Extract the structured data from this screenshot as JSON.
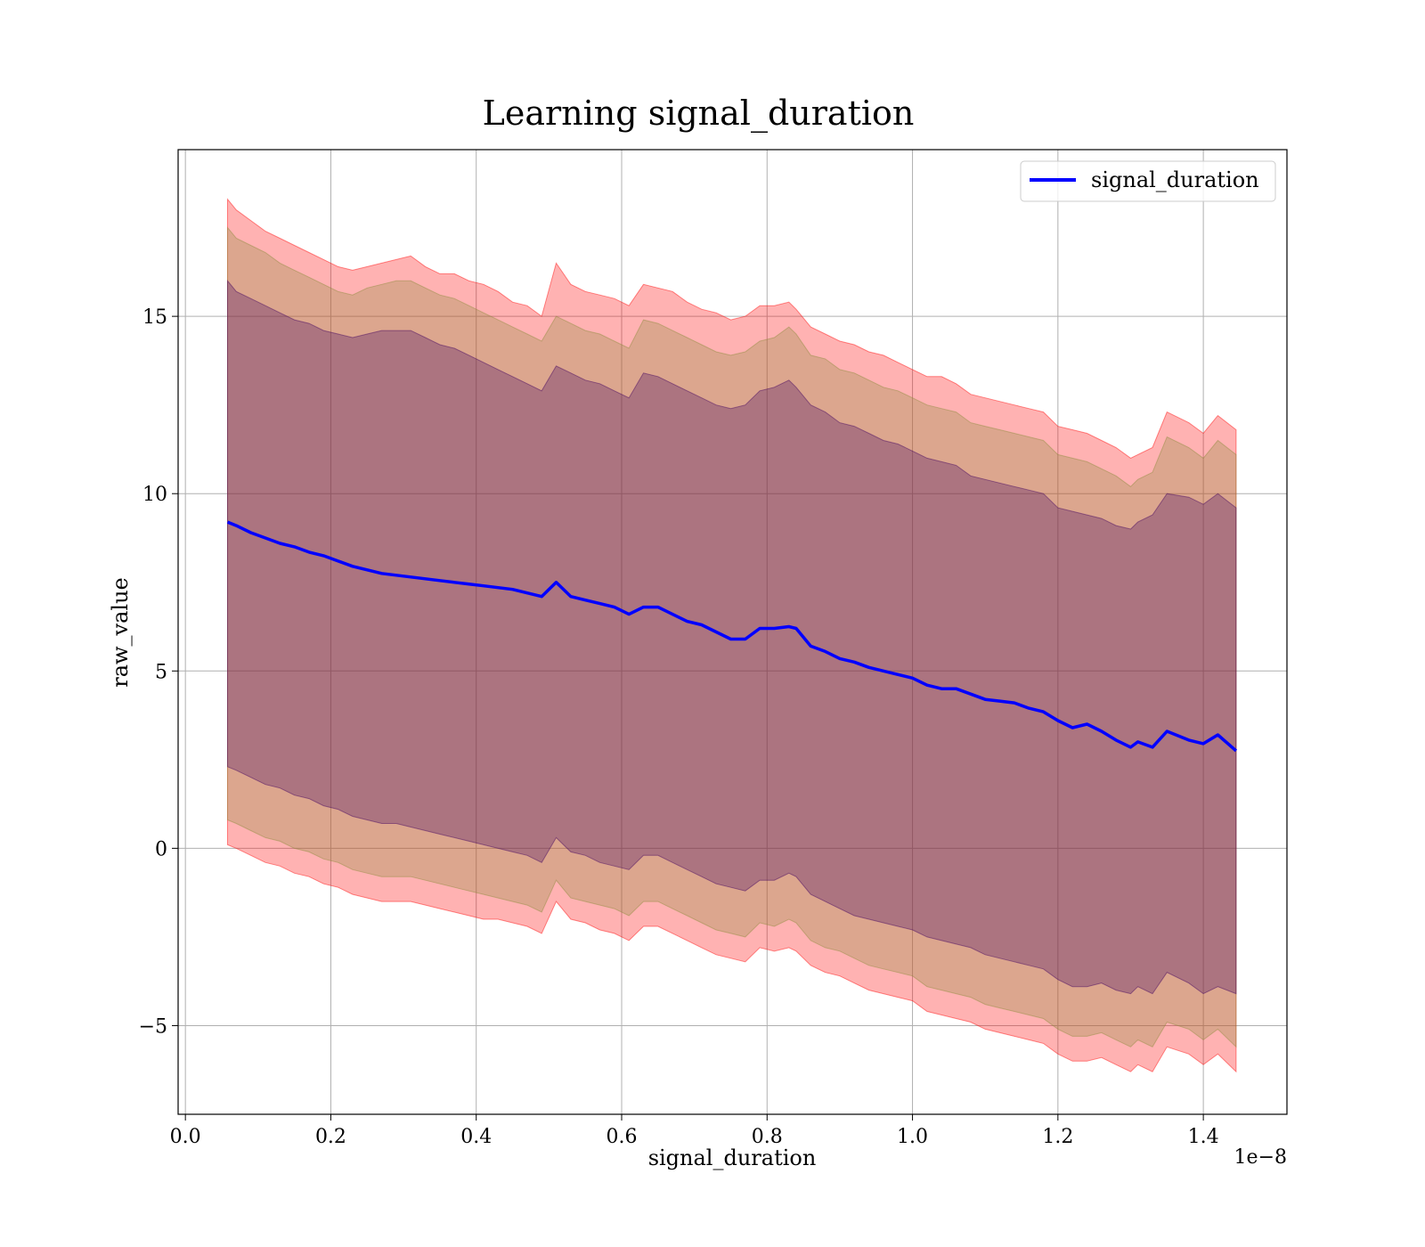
{
  "chart_data": {
    "type": "line",
    "title": "Learning signal_duration",
    "xlabel": "signal_duration",
    "ylabel": "raw_value",
    "x_offset_label": "1e−8",
    "x_tick_labels": [
      "0.0",
      "0.2",
      "0.4",
      "0.6",
      "0.8",
      "1.0",
      "1.2",
      "1.4"
    ],
    "y_tick_labels": [
      "−5",
      "0",
      "5",
      "10",
      "15"
    ],
    "xlim": [
      -0.01,
      1.515
    ],
    "ylim": [
      -7.5,
      19.7
    ],
    "grid": true,
    "legend_position": "upper right",
    "series": [
      {
        "name": "signal_duration",
        "color": "#0000ff",
        "x": [
          0.058,
          0.07,
          0.09,
          0.11,
          0.13,
          0.15,
          0.17,
          0.19,
          0.21,
          0.23,
          0.25,
          0.27,
          0.29,
          0.31,
          0.33,
          0.35,
          0.37,
          0.39,
          0.41,
          0.43,
          0.45,
          0.47,
          0.49,
          0.51,
          0.53,
          0.55,
          0.57,
          0.59,
          0.61,
          0.63,
          0.65,
          0.67,
          0.69,
          0.71,
          0.73,
          0.75,
          0.77,
          0.79,
          0.81,
          0.83,
          0.84,
          0.86,
          0.88,
          0.9,
          0.92,
          0.94,
          0.96,
          0.98,
          1.0,
          1.02,
          1.04,
          1.06,
          1.08,
          1.1,
          1.12,
          1.14,
          1.16,
          1.18,
          1.2,
          1.22,
          1.24,
          1.26,
          1.28,
          1.3,
          1.31,
          1.33,
          1.35,
          1.38,
          1.4,
          1.42,
          1.445
        ],
        "y": [
          9.2,
          9.1,
          8.9,
          8.75,
          8.6,
          8.5,
          8.35,
          8.25,
          8.1,
          7.95,
          7.85,
          7.75,
          7.7,
          7.65,
          7.6,
          7.55,
          7.5,
          7.45,
          7.4,
          7.35,
          7.3,
          7.2,
          7.1,
          7.5,
          7.1,
          7.0,
          6.9,
          6.8,
          6.6,
          6.8,
          6.8,
          6.6,
          6.4,
          6.3,
          6.1,
          5.9,
          5.9,
          6.2,
          6.2,
          6.25,
          6.2,
          5.7,
          5.55,
          5.35,
          5.25,
          5.1,
          5.0,
          4.9,
          4.8,
          4.6,
          4.5,
          4.5,
          4.35,
          4.2,
          4.15,
          4.1,
          3.95,
          3.85,
          3.6,
          3.4,
          3.5,
          3.3,
          3.05,
          2.85,
          3.0,
          2.85,
          3.3,
          3.05,
          2.95,
          3.2,
          2.75
        ]
      }
    ],
    "bands": [
      {
        "color": "#ff0000",
        "opacity": 0.3,
        "upper": [
          18.3,
          18.0,
          17.7,
          17.4,
          17.2,
          17.0,
          16.8,
          16.6,
          16.4,
          16.3,
          16.4,
          16.5,
          16.6,
          16.7,
          16.4,
          16.2,
          16.2,
          16.0,
          15.9,
          15.7,
          15.4,
          15.3,
          15.0,
          16.5,
          15.9,
          15.7,
          15.6,
          15.5,
          15.3,
          15.9,
          15.8,
          15.7,
          15.4,
          15.2,
          15.1,
          14.9,
          15.0,
          15.3,
          15.3,
          15.4,
          15.2,
          14.7,
          14.5,
          14.3,
          14.2,
          14.0,
          13.9,
          13.7,
          13.5,
          13.3,
          13.3,
          13.1,
          12.8,
          12.7,
          12.6,
          12.5,
          12.4,
          12.3,
          11.9,
          11.8,
          11.7,
          11.5,
          11.3,
          11.0,
          11.1,
          11.3,
          12.3,
          12.0,
          11.7,
          12.2,
          11.8
        ],
        "lower": [
          0.1,
          0.0,
          -0.2,
          -0.4,
          -0.5,
          -0.7,
          -0.8,
          -1.0,
          -1.1,
          -1.3,
          -1.4,
          -1.5,
          -1.5,
          -1.5,
          -1.6,
          -1.7,
          -1.8,
          -1.9,
          -2.0,
          -2.0,
          -2.1,
          -2.2,
          -2.4,
          -1.5,
          -2.0,
          -2.1,
          -2.3,
          -2.4,
          -2.6,
          -2.2,
          -2.2,
          -2.4,
          -2.6,
          -2.8,
          -3.0,
          -3.1,
          -3.2,
          -2.8,
          -2.9,
          -2.8,
          -2.9,
          -3.3,
          -3.5,
          -3.6,
          -3.8,
          -4.0,
          -4.1,
          -4.2,
          -4.3,
          -4.6,
          -4.7,
          -4.8,
          -4.9,
          -5.1,
          -5.2,
          -5.3,
          -5.4,
          -5.5,
          -5.8,
          -6.0,
          -6.0,
          -5.9,
          -6.1,
          -6.3,
          -6.1,
          -6.3,
          -5.6,
          -5.8,
          -6.1,
          -5.8,
          -6.3
        ]
      },
      {
        "color": "#8c8c3c",
        "opacity": 0.3,
        "upper": [
          17.5,
          17.2,
          17.0,
          16.8,
          16.5,
          16.3,
          16.1,
          15.9,
          15.7,
          15.6,
          15.8,
          15.9,
          16.0,
          16.0,
          15.8,
          15.6,
          15.5,
          15.3,
          15.1,
          14.9,
          14.7,
          14.5,
          14.3,
          15.0,
          14.8,
          14.6,
          14.5,
          14.3,
          14.1,
          14.9,
          14.8,
          14.6,
          14.4,
          14.2,
          14.0,
          13.9,
          14.0,
          14.3,
          14.4,
          14.7,
          14.5,
          13.9,
          13.8,
          13.5,
          13.4,
          13.2,
          13.0,
          12.9,
          12.7,
          12.5,
          12.4,
          12.3,
          12.0,
          11.9,
          11.8,
          11.7,
          11.6,
          11.5,
          11.1,
          11.0,
          10.9,
          10.7,
          10.5,
          10.2,
          10.4,
          10.6,
          11.6,
          11.3,
          11.0,
          11.5,
          11.1
        ],
        "lower": [
          0.8,
          0.7,
          0.5,
          0.3,
          0.2,
          0.0,
          -0.1,
          -0.3,
          -0.4,
          -0.6,
          -0.7,
          -0.8,
          -0.8,
          -0.8,
          -0.9,
          -1.0,
          -1.1,
          -1.2,
          -1.3,
          -1.4,
          -1.5,
          -1.6,
          -1.8,
          -0.9,
          -1.4,
          -1.5,
          -1.6,
          -1.7,
          -1.9,
          -1.5,
          -1.5,
          -1.7,
          -1.9,
          -2.1,
          -2.3,
          -2.4,
          -2.5,
          -2.1,
          -2.2,
          -2.0,
          -2.1,
          -2.6,
          -2.8,
          -2.9,
          -3.1,
          -3.3,
          -3.4,
          -3.5,
          -3.6,
          -3.9,
          -4.0,
          -4.1,
          -4.2,
          -4.4,
          -4.5,
          -4.6,
          -4.7,
          -4.8,
          -5.1,
          -5.3,
          -5.3,
          -5.2,
          -5.4,
          -5.6,
          -5.4,
          -5.6,
          -4.9,
          -5.1,
          -5.4,
          -5.1,
          -5.6
        ]
      },
      {
        "color": "#400060",
        "opacity": 0.3,
        "upper": [
          16.0,
          15.7,
          15.5,
          15.3,
          15.1,
          14.9,
          14.8,
          14.6,
          14.5,
          14.4,
          14.5,
          14.6,
          14.6,
          14.6,
          14.4,
          14.2,
          14.1,
          13.9,
          13.7,
          13.5,
          13.3,
          13.1,
          12.9,
          13.6,
          13.4,
          13.2,
          13.1,
          12.9,
          12.7,
          13.4,
          13.3,
          13.1,
          12.9,
          12.7,
          12.5,
          12.4,
          12.5,
          12.9,
          13.0,
          13.2,
          13.0,
          12.5,
          12.3,
          12.0,
          11.9,
          11.7,
          11.5,
          11.4,
          11.2,
          11.0,
          10.9,
          10.8,
          10.5,
          10.4,
          10.3,
          10.2,
          10.1,
          10.0,
          9.6,
          9.5,
          9.4,
          9.3,
          9.1,
          9.0,
          9.2,
          9.4,
          10.0,
          9.9,
          9.7,
          10.0,
          9.6
        ],
        "lower": [
          2.3,
          2.2,
          2.0,
          1.8,
          1.7,
          1.5,
          1.4,
          1.2,
          1.1,
          0.9,
          0.8,
          0.7,
          0.7,
          0.6,
          0.5,
          0.4,
          0.3,
          0.2,
          0.1,
          0.0,
          -0.1,
          -0.2,
          -0.4,
          0.3,
          -0.1,
          -0.2,
          -0.4,
          -0.5,
          -0.6,
          -0.2,
          -0.2,
          -0.4,
          -0.6,
          -0.8,
          -1.0,
          -1.1,
          -1.2,
          -0.9,
          -0.9,
          -0.7,
          -0.8,
          -1.3,
          -1.5,
          -1.7,
          -1.9,
          -2.0,
          -2.1,
          -2.2,
          -2.3,
          -2.5,
          -2.6,
          -2.7,
          -2.8,
          -3.0,
          -3.1,
          -3.2,
          -3.3,
          -3.4,
          -3.7,
          -3.9,
          -3.9,
          -3.8,
          -4.0,
          -4.1,
          -3.9,
          -4.1,
          -3.5,
          -3.8,
          -4.1,
          -3.9,
          -4.1
        ]
      }
    ]
  }
}
